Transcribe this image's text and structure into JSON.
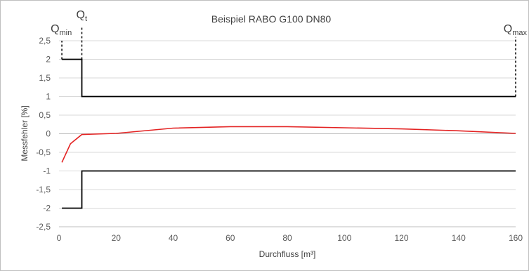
{
  "chart_data": {
    "type": "line",
    "title": "Beispiel RABO G100 DN80",
    "xlabel": "Durchfluss [m³]",
    "ylabel": "Messfehler [%]",
    "xlim": [
      0,
      160
    ],
    "ylim": [
      -2.5,
      2.5
    ],
    "x_ticks": [
      0,
      20,
      40,
      60,
      80,
      100,
      120,
      140,
      160
    ],
    "y_ticks": [
      2.5,
      2,
      1.5,
      1,
      0.5,
      0,
      -0.5,
      -1,
      -1.5,
      -2,
      -2.5
    ],
    "x_tick_labels": [
      "0",
      "20",
      "40",
      "60",
      "80",
      "100",
      "120",
      "140",
      "160"
    ],
    "y_tick_labels": [
      "2,5",
      "2",
      "1,5",
      "1",
      "0,5",
      "0",
      "-0,5",
      "-1",
      "-1,5",
      "-2",
      "-2,5"
    ],
    "grid": "horizontal",
    "legend": "none",
    "annotations": [
      {
        "main": "Q",
        "sub": "min",
        "x": 1
      },
      {
        "main": "Q",
        "sub": "t",
        "x": 8
      },
      {
        "main": "Q",
        "sub": "max",
        "x": 160
      }
    ],
    "series": [
      {
        "color": "#e32222",
        "x": [
          1,
          4,
          8,
          20,
          40,
          60,
          80,
          100,
          120,
          140,
          160
        ],
        "y": [
          -0.77,
          -0.27,
          -0.02,
          0.01,
          0.15,
          0.19,
          0.19,
          0.16,
          0.13,
          0.08,
          0.01
        ]
      },
      {
        "color": "#000000",
        "x": [
          1,
          8,
          8,
          160
        ],
        "y": [
          2,
          2,
          1,
          1
        ]
      },
      {
        "color": "#000000",
        "x": [
          1,
          8,
          8,
          160
        ],
        "y": [
          -2,
          -2,
          -1,
          -1
        ]
      }
    ],
    "dashed_markers": [
      {
        "x": 1,
        "y_from": 2,
        "y_to": 2.5
      },
      {
        "x": 8,
        "y_from": 2,
        "y_to": 2.9
      },
      {
        "x": 160,
        "y_from": 1,
        "y_to": 2.6
      }
    ]
  }
}
